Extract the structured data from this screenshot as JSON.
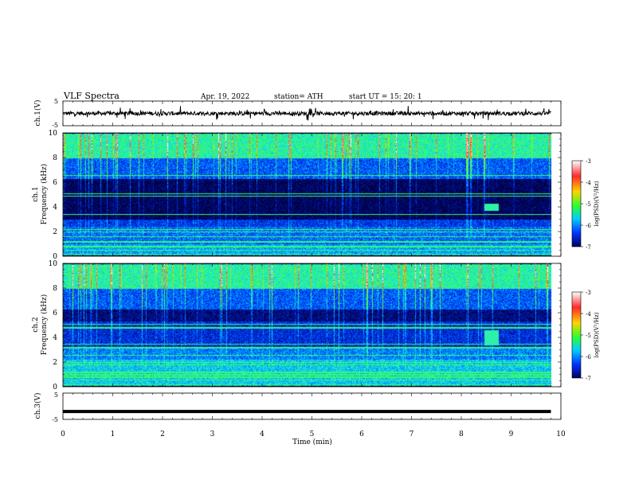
{
  "header": {
    "title": "VLF  Spectra",
    "date": "Apr. 19, 2022",
    "station": "station= ATH",
    "start": "start  UT  =    15: 20: 1"
  },
  "colorbar": {
    "label": "log(PSD)(V²/Hz)",
    "ticks": [
      "-3",
      "-4",
      "-5",
      "-6",
      "-7"
    ],
    "colors": [
      "#ffffff",
      "#ff2a2a",
      "#ffd400",
      "#2dff2d",
      "#00ccff",
      "#0033ff",
      "#000060"
    ]
  },
  "chart_data": [
    {
      "type": "line",
      "name": "ch1-waveform",
      "ylabel": "ch.1(V)",
      "ylim": [
        -5,
        5
      ],
      "yticks": [
        "5",
        "-5"
      ],
      "x_range": [
        0,
        10
      ],
      "baseline": 0,
      "data_extent_min": 9.8,
      "series_color": "#000000"
    },
    {
      "type": "heatmap",
      "name": "ch1-spectrogram",
      "ylabel": "ch.1",
      "ylabel2": "Frequency (kHz)",
      "ylim": [
        0,
        10
      ],
      "yticks": [
        "0",
        "2",
        "4",
        "6",
        "8",
        "10"
      ],
      "x_range": [
        0,
        10
      ],
      "data_extent_min": 9.8,
      "zlim": [
        -7,
        -3
      ],
      "bands": [
        {
          "f0": 8.0,
          "f1": 10.0,
          "level": -4.9
        },
        {
          "f0": 6.3,
          "f1": 8.0,
          "level": -5.9
        },
        {
          "f0": 3.0,
          "f1": 6.3,
          "level": -6.9
        },
        {
          "f0": 2.4,
          "f1": 3.0,
          "level": -6.1
        },
        {
          "f0": 1.0,
          "f1": 2.4,
          "level": -5.8
        },
        {
          "f0": 0.1,
          "f1": 1.0,
          "level": -5.5
        }
      ],
      "lines_khz": [
        0.2,
        0.5,
        0.8,
        1.2,
        1.6,
        2.0,
        2.2,
        3.4,
        4.9,
        5.1,
        6.6
      ],
      "burst": {
        "t0": 8.45,
        "t1": 8.75,
        "f0": 3.7,
        "f1": 4.3
      }
    },
    {
      "type": "heatmap",
      "name": "ch2-spectrogram",
      "ylabel": "ch.2",
      "ylabel2": "Frequency (kHz)",
      "ylim": [
        0,
        10
      ],
      "yticks": [
        "0",
        "2",
        "4",
        "6",
        "8",
        "10"
      ],
      "x_range": [
        0,
        10
      ],
      "data_extent_min": 9.8,
      "zlim": [
        -7,
        -3
      ],
      "bands": [
        {
          "f0": 8.0,
          "f1": 10.0,
          "level": -4.9
        },
        {
          "f0": 6.3,
          "f1": 8.0,
          "level": -5.9
        },
        {
          "f0": 5.3,
          "f1": 6.3,
          "level": -6.7
        },
        {
          "f0": 3.2,
          "f1": 5.3,
          "level": -6.2
        },
        {
          "f0": 2.2,
          "f1": 3.2,
          "level": -5.7
        },
        {
          "f0": 0.1,
          "f1": 2.2,
          "level": -5.3
        }
      ],
      "lines_khz": [
        0.2,
        0.6,
        0.8,
        1.0,
        1.2,
        1.8,
        2.0,
        2.6,
        3.2,
        3.5,
        4.8,
        5.1
      ],
      "burst": {
        "t0": 8.45,
        "t1": 8.75,
        "f0": 3.4,
        "f1": 4.6
      }
    },
    {
      "type": "line",
      "name": "ch3-waveform",
      "ylabel": "ch.3(V)",
      "ylim": [
        -5,
        5
      ],
      "yticks": [
        "5",
        "-5"
      ],
      "x_range": [
        0,
        10
      ],
      "baseline": -2,
      "data_extent_min": 9.8,
      "series_color": "#000000"
    }
  ],
  "xaxis": {
    "label": "Time  (min)",
    "ticks": [
      "0",
      "1",
      "2",
      "3",
      "4",
      "5",
      "6",
      "7",
      "8",
      "9",
      "10"
    ]
  }
}
